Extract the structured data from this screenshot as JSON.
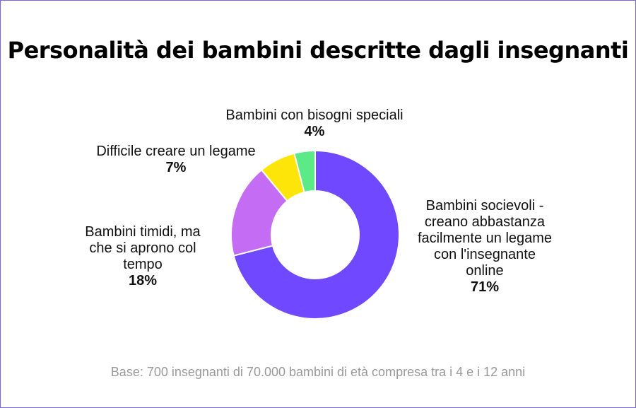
{
  "title": "Personalità dei bambini descritte dagli insegnanti",
  "footer": "Base: 700 insegnanti di 70.000 bambini di età compresa tra i 4 e i 12 anni",
  "chart_data": {
    "type": "pie",
    "variant": "donut",
    "title": "Personalità dei bambini descritte dagli insegnanti",
    "slices": [
      {
        "label": "Bambini socievoli - creano abbastanza facilmente un legame con l'insegnante online",
        "value": 71,
        "display": "71%",
        "color": "#6f48ff"
      },
      {
        "label": "Bambini timidi, ma che si aprono col tempo",
        "value": 18,
        "display": "18%",
        "color": "#c46cf4"
      },
      {
        "label": "Difficile creare un legame",
        "value": 7,
        "display": "7%",
        "color": "#fde509"
      },
      {
        "label": "Bambini con bisogni speciali",
        "value": 4,
        "display": "4%",
        "color": "#5cea88"
      }
    ]
  },
  "labels": {
    "sociable_text": "Bambini socievoli -\ncreano abbastanza\nfacilmente un legame\ncon l'insegnante\nonline",
    "shy_text": "Bambini timidi, ma\nche si aprono col\ntempo",
    "difficult_text": "Difficile creare un legame",
    "special_text": "Bambini con bisogni speciali"
  }
}
